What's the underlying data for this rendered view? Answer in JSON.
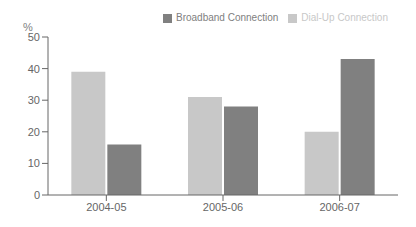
{
  "chart_data": {
    "type": "bar",
    "categories": [
      "2004-05",
      "2005-06",
      "2006-07"
    ],
    "series": [
      {
        "name": "Dial-Up Connection",
        "color": "#c8c8c8",
        "values": [
          39,
          31,
          20
        ]
      },
      {
        "name": "Broadband Connection",
        "color": "#808080",
        "values": [
          16,
          28,
          43
        ]
      }
    ],
    "ylabel": "%",
    "ylim": [
      0,
      50
    ],
    "yticks": [
      0,
      10,
      20,
      30,
      40,
      50
    ],
    "grid": false,
    "legend": "upper right"
  }
}
